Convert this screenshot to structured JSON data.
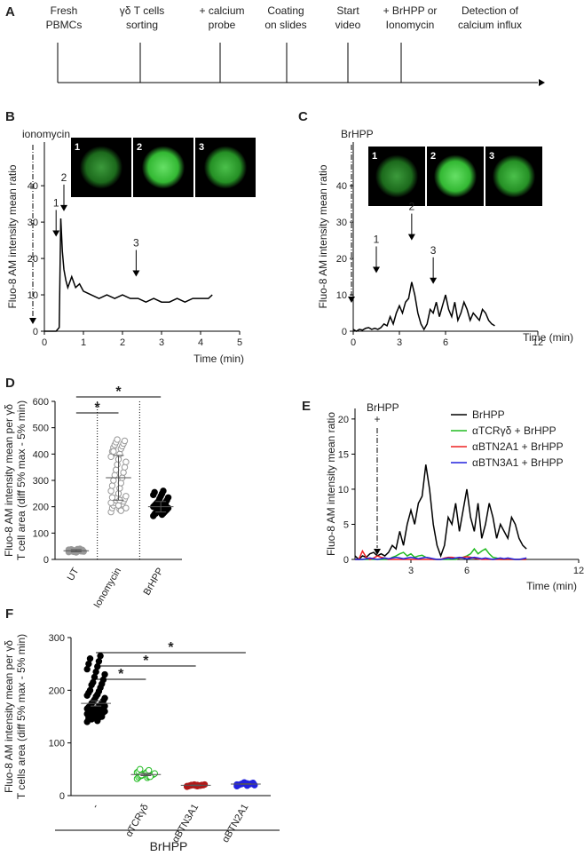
{
  "panel_a": {
    "panel": "A",
    "steps": [
      [
        "Fresh",
        "PBMCs"
      ],
      [
        "γδ T cells",
        "sorting"
      ],
      [
        "+ calcium",
        "probe"
      ],
      [
        "Coating",
        "on slides"
      ],
      [
        "Start",
        "video"
      ],
      [
        "+ BrHPP or",
        "Ionomycin"
      ],
      [
        "Detection of",
        "calcium influx"
      ]
    ]
  },
  "chart_data": [
    {
      "type": "line",
      "panel": "B",
      "ylabel": "Fluo-8 AM  intensity mean ratio",
      "xlabel": "Time (min)",
      "stimulus": [
        "ionomycin"
      ],
      "insets": [
        "1",
        "2",
        "3"
      ],
      "x": [
        0,
        0.3,
        0.38,
        0.42,
        0.46,
        0.5,
        0.55,
        0.6,
        0.7,
        0.8,
        0.9,
        1.0,
        1.2,
        1.4,
        1.6,
        1.8,
        2.0,
        2.2,
        2.4,
        2.6,
        2.8,
        3.0,
        3.2,
        3.4,
        3.6,
        3.8,
        4.0,
        4.2,
        4.3
      ],
      "values": [
        0,
        0,
        1,
        31,
        22,
        17,
        14,
        12,
        15,
        12,
        13,
        11,
        10,
        9,
        10,
        9,
        10,
        9,
        9,
        8,
        9,
        8,
        8,
        9,
        8,
        9,
        9,
        9,
        10
      ],
      "color": "#000000",
      "xlim": [
        0,
        5
      ],
      "xticks": [
        0,
        1,
        2,
        3,
        4,
        5
      ],
      "ylim": [
        0,
        52
      ],
      "yticks": [
        0,
        10,
        20,
        30,
        40
      ],
      "annotations": [
        {
          "text": "1",
          "x": 0.3,
          "y": 26
        },
        {
          "text": "2",
          "x": 0.5,
          "y": 33
        },
        {
          "text": "3",
          "x": 2.35,
          "y": 15
        }
      ]
    },
    {
      "type": "line",
      "panel": "C",
      "ylabel": "Fluo-8 AM  intensity mean ratio",
      "xlabel": "Time (min)",
      "stimulus": [
        "BrHPP"
      ],
      "insets": [
        "1",
        "2",
        "3"
      ],
      "x": [
        0,
        0.2,
        0.4,
        0.6,
        0.8,
        1.0,
        1.2,
        1.4,
        1.6,
        1.8,
        2.0,
        2.2,
        2.4,
        2.6,
        2.8,
        3.0,
        3.2,
        3.4,
        3.6,
        3.8,
        4.0,
        4.2,
        4.4,
        4.6,
        4.8,
        5.0,
        5.2,
        5.4,
        5.6,
        5.8,
        6.0,
        6.2,
        6.4,
        6.6,
        6.8,
        7.0,
        7.2,
        7.4,
        7.6,
        7.8,
        8.0,
        8.2,
        8.4,
        8.6,
        8.8,
        9.0,
        9.2
      ],
      "values": [
        0.5,
        0,
        0.5,
        0.3,
        0.8,
        1,
        0.5,
        0.8,
        0.5,
        1,
        2,
        1.5,
        4,
        2,
        5,
        7,
        5,
        8,
        9,
        13.5,
        10,
        5,
        2,
        0.5,
        2,
        6,
        5,
        8,
        4,
        7,
        10,
        6,
        4,
        8,
        3,
        5,
        8,
        6,
        3,
        5,
        4,
        3,
        6,
        5,
        3,
        2,
        1.5
      ],
      "color": "#000000",
      "xlim": [
        0,
        12
      ],
      "xticks": [
        0,
        3,
        6,
        12
      ],
      "ylim": [
        0,
        52
      ],
      "yticks": [
        0,
        10,
        20,
        30,
        40
      ],
      "annotations": [
        {
          "text": "1",
          "x": 1.5,
          "y": 16
        },
        {
          "text": "2",
          "x": 3.8,
          "y": 25
        },
        {
          "text": "3",
          "x": 5.2,
          "y": 13
        }
      ]
    },
    {
      "type": "dot",
      "panel": "D",
      "ylabel": [
        "Fluo-8 AM intensity mean per γδ",
        "T cell area (diff 5% max - 5% min)"
      ],
      "ylim": [
        0,
        600
      ],
      "yticks": [
        0,
        100,
        200,
        300,
        400,
        500,
        600
      ],
      "groups": [
        {
          "name": "UT",
          "color": "#999999",
          "filled": true,
          "mean": 33,
          "error": 4,
          "values": [
            28,
            30,
            32,
            35,
            38,
            40,
            33,
            31,
            29,
            36,
            34,
            30,
            27,
            37,
            39,
            32,
            35,
            31,
            33,
            36
          ]
        },
        {
          "name": "Ionomycin",
          "color": "#999999",
          "filled": false,
          "mean": 310,
          "error": 85,
          "values": [
            180,
            190,
            195,
            200,
            205,
            210,
            215,
            220,
            225,
            230,
            235,
            240,
            250,
            260,
            270,
            280,
            290,
            300,
            310,
            320,
            330,
            340,
            350,
            360,
            370,
            380,
            390,
            400,
            410,
            420,
            425,
            430,
            435,
            440,
            445,
            450,
            455,
            195,
            205,
            215,
            225,
            235,
            185,
            410
          ]
        },
        {
          "name": "BrHPP",
          "color": "#000000",
          "filled": true,
          "mean": 200,
          "error": 20,
          "values": [
            165,
            170,
            172,
            175,
            178,
            180,
            182,
            185,
            187,
            190,
            192,
            195,
            197,
            200,
            202,
            205,
            207,
            210,
            212,
            215,
            218,
            220,
            225,
            230,
            235,
            240,
            245,
            250,
            255,
            260,
            175,
            185,
            195,
            205,
            215,
            190
          ]
        }
      ],
      "brackets": [
        {
          "groups": [
            "UT",
            "Ionomycin"
          ],
          "label": "*"
        },
        {
          "groups": [
            "UT",
            "BrHPP"
          ],
          "label": "*"
        }
      ]
    },
    {
      "type": "line",
      "panel": "E",
      "ylabel": "Fluo-8 AM  intensity mean ratio",
      "xlabel": "Time (min)",
      "stimulus": [
        "BrHPP",
        "+"
      ],
      "legend": true,
      "x": [
        0,
        0.2,
        0.4,
        0.6,
        0.8,
        1.0,
        1.2,
        1.4,
        1.6,
        1.8,
        2.0,
        2.2,
        2.4,
        2.6,
        2.8,
        3.0,
        3.2,
        3.4,
        3.6,
        3.8,
        4.0,
        4.2,
        4.4,
        4.6,
        4.8,
        5.0,
        5.2,
        5.4,
        5.6,
        5.8,
        6.0,
        6.2,
        6.4,
        6.6,
        6.8,
        7.0,
        7.2,
        7.4,
        7.6,
        7.8,
        8.0,
        8.2,
        8.4,
        8.6,
        8.8,
        9.0,
        9.2
      ],
      "series": [
        {
          "name": "BrHPP",
          "color": "#000000",
          "values": [
            0.5,
            0,
            0.5,
            0.3,
            0.8,
            1,
            0.5,
            0.8,
            0.5,
            1,
            2,
            1.5,
            4,
            2,
            5,
            7,
            5,
            8,
            9,
            13.5,
            10,
            5,
            2,
            0.5,
            2,
            6,
            5,
            8,
            4,
            7,
            10,
            6,
            4,
            8,
            3,
            5,
            8,
            6,
            3,
            5,
            4,
            3,
            6,
            5,
            3,
            2,
            1.5
          ]
        },
        {
          "name": "αTCRγδ + BrHPP",
          "color": "#22bb22",
          "values": [
            0,
            0,
            0,
            0,
            0,
            0,
            0,
            0,
            0,
            0,
            0.3,
            0.5,
            0.8,
            1,
            0.5,
            0.8,
            0.3,
            0.5,
            0.6,
            0.3,
            0.2,
            0,
            0,
            0,
            0,
            0,
            0,
            0,
            0.2,
            0.3,
            0.5,
            0.8,
            1.5,
            0.8,
            1.2,
            1.5,
            0.8,
            0.3,
            0.2,
            0,
            0,
            0,
            0,
            0,
            0,
            0,
            0
          ]
        },
        {
          "name": "αBTN2A1 + BrHPP",
          "color": "#ee2222",
          "values": [
            0,
            0,
            1.2,
            0.3,
            0,
            0.2,
            0.5,
            0.3,
            0.2,
            0,
            0,
            0,
            0,
            0,
            0,
            0,
            0,
            0,
            0,
            0,
            0,
            0,
            0,
            0,
            0.2,
            0.3,
            0.3,
            0.2,
            0.2,
            0.3,
            0.4,
            0.3,
            0.2,
            0.1,
            0,
            0,
            0,
            0,
            0,
            0,
            0,
            0,
            0,
            0,
            0,
            0,
            0
          ]
        },
        {
          "name": "αBTN3A1 + BrHPP",
          "color": "#2222dd",
          "values": [
            0,
            0,
            0,
            0.1,
            0.2,
            0.1,
            0,
            0.1,
            0.2,
            0.1,
            0.2,
            0.3,
            0.2,
            0.1,
            0.2,
            0.3,
            0.2,
            0.1,
            0.2,
            0.3,
            0.2,
            0.1,
            0,
            0,
            0.1,
            0.2,
            0.1,
            0.2,
            0.3,
            0.2,
            0.1,
            0.2,
            0.3,
            0.2,
            0.1,
            0.2,
            0.1,
            0,
            0.1,
            0.2,
            0.1,
            0.2,
            0.1,
            0,
            0,
            0.1,
            0.2
          ]
        }
      ],
      "xlim": [
        0,
        12
      ],
      "xticks": [
        3,
        6,
        12
      ],
      "ylim": [
        0,
        21.5
      ],
      "yticks": [
        0,
        5,
        10,
        15,
        20
      ]
    },
    {
      "type": "dot",
      "panel": "F",
      "ylabel": [
        "Fluo-8 AM intensity mean per γδ",
        "T cells area (diff 5% max - 5% min)"
      ],
      "group_label": "BrHPP",
      "ylim": [
        0,
        300
      ],
      "yticks": [
        0,
        100,
        200,
        300
      ],
      "groups": [
        {
          "name": "-",
          "color": "#000000",
          "filled": true,
          "mean": 175,
          "error": 5,
          "values": [
            140,
            142,
            145,
            148,
            150,
            150,
            152,
            155,
            155,
            158,
            160,
            160,
            162,
            165,
            165,
            168,
            170,
            170,
            172,
            175,
            175,
            178,
            180,
            182,
            185,
            188,
            190,
            192,
            195,
            198,
            200,
            205,
            210,
            212,
            215,
            220,
            225,
            230,
            235,
            240,
            245,
            250,
            255,
            260,
            265,
            145,
            150,
            155,
            160,
            165,
            170,
            150,
            155,
            160,
            148,
            152,
            158,
            162,
            168,
            172
          ]
        },
        {
          "name": "αTCRγδ",
          "color": "#22bb22",
          "filled": false,
          "mean": 40,
          "error": 2,
          "values": [
            32,
            34,
            35,
            36,
            37,
            38,
            38,
            39,
            40,
            40,
            41,
            42,
            43,
            44,
            45,
            46,
            48,
            50,
            36,
            39
          ]
        },
        {
          "name": "αBTN3A1",
          "color": "#b01818",
          "filled": true,
          "mean": 19.5,
          "error": 0.5,
          "values": [
            17,
            18,
            18,
            19,
            19,
            19,
            20,
            20,
            20,
            20,
            21,
            21,
            19,
            18,
            20
          ]
        },
        {
          "name": "αBTN2A1",
          "color": "#2222dd",
          "filled": true,
          "mean": 22,
          "error": 0.5,
          "values": [
            18,
            19,
            20,
            21,
            21,
            22,
            22,
            23,
            23,
            24,
            25,
            20,
            22,
            21,
            23
          ]
        }
      ],
      "brackets": [
        {
          "groups": [
            "-",
            "αTCRγδ"
          ],
          "label": "*"
        },
        {
          "groups": [
            "-",
            "αBTN3A1"
          ],
          "label": "*"
        },
        {
          "groups": [
            "-",
            "αBTN2A1"
          ],
          "label": "*"
        }
      ]
    }
  ]
}
